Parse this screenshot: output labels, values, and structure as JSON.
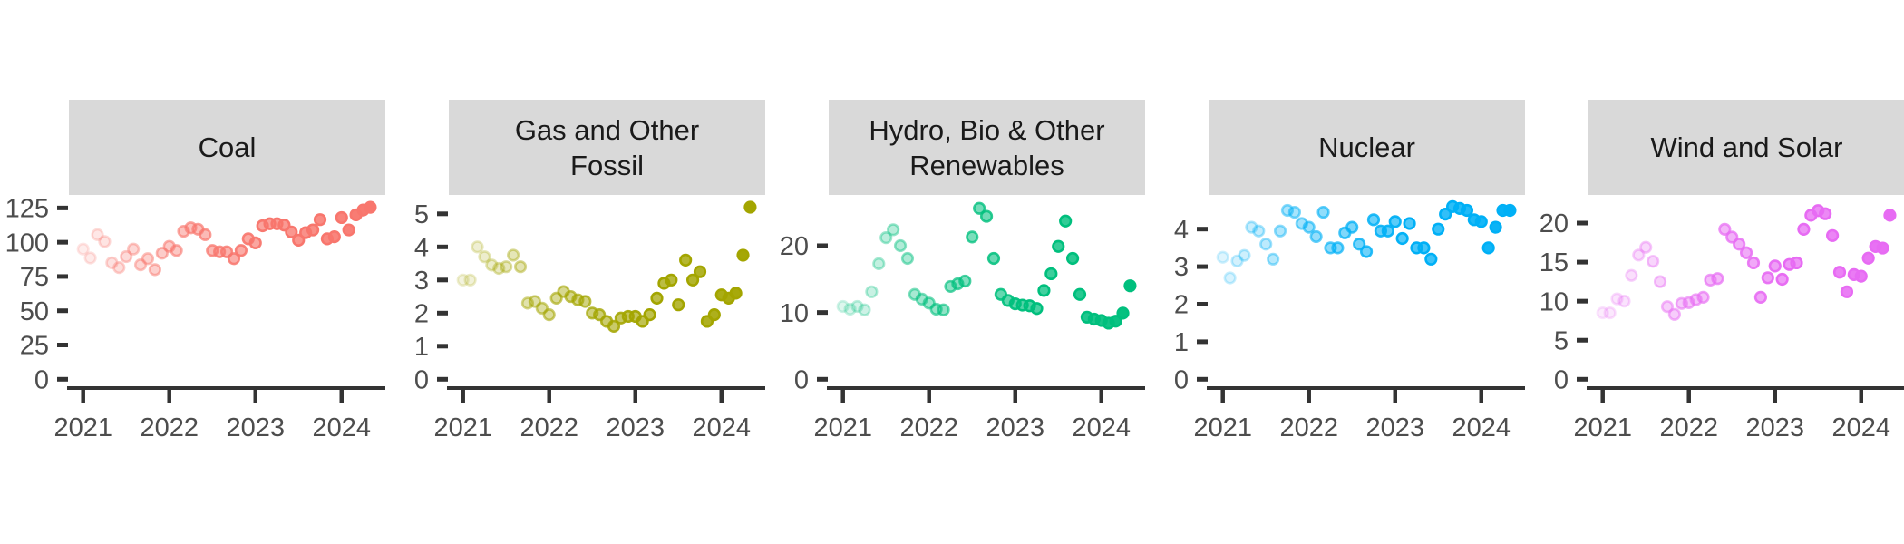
{
  "figure": {
    "description": "Faceted monthly scatter chart of electricity generation by source, Jan 2021 - May 2024, point opacity increases with date",
    "background": "#ffffff",
    "strip_background": "#D9D9D9",
    "axis_color": "#333333",
    "tick_label_color": "#4d4d4d"
  },
  "chart_data": {
    "type": "scatter",
    "facet_layout": "5 panels in one row, shared x axis style, free y scales, no gridlines",
    "x_tick_labels": [
      "2021",
      "2022",
      "2023",
      "2024"
    ],
    "alpha_range": [
      0.13,
      1.0
    ],
    "months": [
      "2021-01",
      "2021-02",
      "2021-03",
      "2021-04",
      "2021-05",
      "2021-06",
      "2021-07",
      "2021-08",
      "2021-09",
      "2021-10",
      "2021-11",
      "2021-12",
      "2022-01",
      "2022-02",
      "2022-03",
      "2022-04",
      "2022-05",
      "2022-06",
      "2022-07",
      "2022-08",
      "2022-09",
      "2022-10",
      "2022-11",
      "2022-12",
      "2023-01",
      "2023-02",
      "2023-03",
      "2023-04",
      "2023-05",
      "2023-06",
      "2023-07",
      "2023-08",
      "2023-09",
      "2023-10",
      "2023-11",
      "2023-12",
      "2024-01",
      "2024-02",
      "2024-03",
      "2024-04",
      "2024-05"
    ],
    "facets": [
      {
        "title": "Coal",
        "color": "#F8766D",
        "yticks": [
          0,
          25,
          50,
          75,
          100,
          125
        ],
        "ylim": [
          0,
          134.5
        ],
        "values": [
          95,
          88.5,
          105.5,
          100.5,
          85,
          81.5,
          89.5,
          95,
          83.5,
          88,
          80,
          92,
          97,
          94,
          108,
          110.5,
          109.5,
          105.5,
          94,
          93,
          93,
          88,
          94,
          102.5,
          99.5,
          112,
          113.5,
          113.5,
          112.5,
          107.5,
          101.5,
          107,
          109,
          116.5,
          102.5,
          104,
          118,
          109,
          120,
          123.5,
          125.5
        ]
      },
      {
        "title": "Gas and Other\nFossil",
        "color": "#A3A500",
        "yticks": [
          0,
          1,
          2,
          3,
          4,
          5
        ],
        "ylim": [
          0,
          5.57
        ],
        "values": [
          3.0,
          3.0,
          4.0,
          3.7,
          3.45,
          3.35,
          3.4,
          3.75,
          3.4,
          2.3,
          2.35,
          2.15,
          1.95,
          2.45,
          2.65,
          2.5,
          2.4,
          2.35,
          2.0,
          1.95,
          1.75,
          1.6,
          1.85,
          1.9,
          1.9,
          1.75,
          1.95,
          2.45,
          2.9,
          3.0,
          2.25,
          3.6,
          3.0,
          3.25,
          1.75,
          1.95,
          2.55,
          2.45,
          2.6,
          3.75,
          5.2
        ]
      },
      {
        "title": "Hydro, Bio & Other\nRenewables",
        "color": "#00BF7D",
        "yticks": [
          0,
          10,
          20
        ],
        "ylim": [
          0,
          27.6
        ],
        "values": [
          10.9,
          10.5,
          10.9,
          10.4,
          13.1,
          17.3,
          21.2,
          22.4,
          20.0,
          18.1,
          12.7,
          12.0,
          11.4,
          10.5,
          10.4,
          13.9,
          14.3,
          14.7,
          21.3,
          25.6,
          24.4,
          18.1,
          12.7,
          11.8,
          11.3,
          11.1,
          11.0,
          10.6,
          13.3,
          15.8,
          19.9,
          23.7,
          18.1,
          12.7,
          9.3,
          9.0,
          8.8,
          8.4,
          8.7,
          9.9,
          14.0
        ]
      },
      {
        "title": "Nuclear",
        "color": "#00B0F6",
        "yticks": [
          0,
          1,
          2,
          3,
          4
        ],
        "ylim": [
          0,
          4.91
        ],
        "values": [
          3.25,
          2.7,
          3.15,
          3.3,
          4.05,
          3.95,
          3.6,
          3.2,
          3.95,
          4.5,
          4.45,
          4.15,
          4.05,
          3.8,
          4.45,
          3.5,
          3.5,
          3.9,
          4.05,
          3.6,
          3.4,
          4.25,
          3.95,
          3.95,
          4.2,
          3.75,
          4.15,
          3.5,
          3.5,
          3.2,
          4.0,
          4.4,
          4.6,
          4.55,
          4.5,
          4.25,
          4.2,
          3.5,
          4.05,
          4.5,
          4.5
        ]
      },
      {
        "title": "Wind and Solar",
        "color": "#E76BF3",
        "yticks": [
          0,
          5,
          10,
          15,
          20
        ],
        "ylim": [
          0,
          23.6
        ],
        "values": [
          8.5,
          8.5,
          10.3,
          10.0,
          13.3,
          15.9,
          16.9,
          15.1,
          12.5,
          9.3,
          8.3,
          9.7,
          9.8,
          10.2,
          10.5,
          12.7,
          12.9,
          19.2,
          18.2,
          17.3,
          16.2,
          14.9,
          10.5,
          13.0,
          14.5,
          12.8,
          14.7,
          14.9,
          19.2,
          21.0,
          21.6,
          21.2,
          18.4,
          13.7,
          11.2,
          13.4,
          13.2,
          15.5,
          17.0,
          16.8,
          21.0
        ]
      }
    ]
  }
}
